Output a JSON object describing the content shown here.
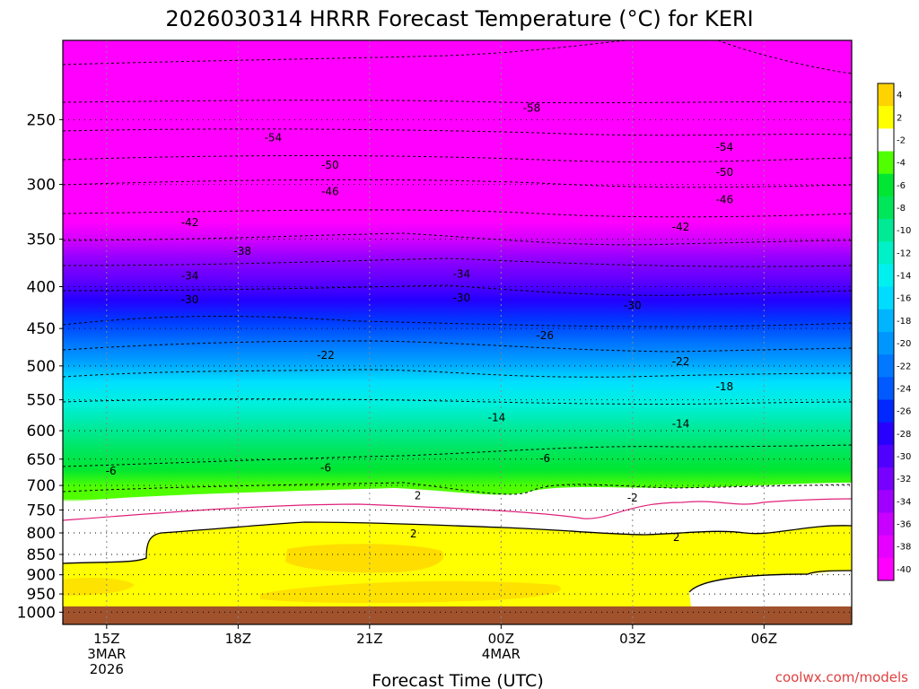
{
  "chart_data": {
    "type": "contour",
    "title": "2026030314 HRRR Forecast Temperature (°C) for KERI",
    "xlabel": "Forecast Time (UTC)",
    "credit": "coolwx.com/models",
    "x_ticks": [
      {
        "label": "15Z",
        "date_line1": "3MAR",
        "date_line2": "2026"
      },
      {
        "label": "18Z",
        "date_line1": "",
        "date_line2": ""
      },
      {
        "label": "21Z",
        "date_line1": "",
        "date_line2": ""
      },
      {
        "label": "00Z",
        "date_line1": "4MAR",
        "date_line2": ""
      },
      {
        "label": "03Z",
        "date_line1": "",
        "date_line2": ""
      },
      {
        "label": "06Z",
        "date_line1": "",
        "date_line2": ""
      }
    ],
    "x_tick_hours": [
      15,
      18,
      21,
      24,
      27,
      30
    ],
    "x_range_hours": [
      14,
      32
    ],
    "y_axis": {
      "type": "pressure",
      "scale": "log",
      "inverted": true,
      "range_hpa": [
        200,
        1035
      ]
    },
    "y_ticks": [
      250,
      300,
      350,
      400,
      450,
      500,
      550,
      600,
      650,
      700,
      750,
      800,
      850,
      900,
      950,
      1000
    ],
    "grid": "dotted",
    "colorbar": {
      "position": "right",
      "ticks": [
        "4",
        "2",
        "-2",
        "-4",
        "-6",
        "-8",
        "-10",
        "-12",
        "-14",
        "-16",
        "-18",
        "-20",
        "-22",
        "-24",
        "-26",
        "-28",
        "-30",
        "-32",
        "-34",
        "-36",
        "-38",
        "-40"
      ],
      "colors": [
        "#ffd300",
        "#ffff00",
        "#ffffff",
        "#50ff00",
        "#00e632",
        "#00e65a",
        "#00ea96",
        "#00f0c8",
        "#00f0f0",
        "#00dcff",
        "#00b4ff",
        "#0096ff",
        "#0078ff",
        "#005aff",
        "#0028ff",
        "#2800ff",
        "#5000ff",
        "#7800ff",
        "#a000ff",
        "#c800ff",
        "#e600ff",
        "#ff00ff"
      ]
    },
    "contour_labels": [
      {
        "value": "-58",
        "hour": 24.7,
        "pressure": 242
      },
      {
        "value": "-54",
        "hour": 18.8,
        "pressure": 263
      },
      {
        "value": "-54",
        "hour": 29.1,
        "pressure": 270
      },
      {
        "value": "-50",
        "hour": 20.1,
        "pressure": 284
      },
      {
        "value": "-50",
        "hour": 29.1,
        "pressure": 290
      },
      {
        "value": "-46",
        "hour": 20.1,
        "pressure": 306
      },
      {
        "value": "-46",
        "hour": 29.1,
        "pressure": 313
      },
      {
        "value": "-42",
        "hour": 16.9,
        "pressure": 334
      },
      {
        "value": "-42",
        "hour": 28.1,
        "pressure": 338
      },
      {
        "value": "-38",
        "hour": 18.1,
        "pressure": 362
      },
      {
        "value": "-34",
        "hour": 16.9,
        "pressure": 388
      },
      {
        "value": "-34",
        "hour": 23.1,
        "pressure": 386
      },
      {
        "value": "-30",
        "hour": 16.9,
        "pressure": 415
      },
      {
        "value": "-30",
        "hour": 23.1,
        "pressure": 413
      },
      {
        "value": "-30",
        "hour": 27.0,
        "pressure": 422
      },
      {
        "value": "-26",
        "hour": 25.0,
        "pressure": 459
      },
      {
        "value": "-22",
        "hour": 20.0,
        "pressure": 485
      },
      {
        "value": "-22",
        "hour": 28.1,
        "pressure": 494
      },
      {
        "value": "-18",
        "hour": 29.1,
        "pressure": 530
      },
      {
        "value": "-14",
        "hour": 23.9,
        "pressure": 578
      },
      {
        "value": "-14",
        "hour": 28.1,
        "pressure": 589
      },
      {
        "value": "-6",
        "hour": 15.1,
        "pressure": 672
      },
      {
        "value": "-6",
        "hour": 20.0,
        "pressure": 666
      },
      {
        "value": "-6",
        "hour": 25.0,
        "pressure": 649
      },
      {
        "value": "2",
        "hour": 22.1,
        "pressure": 720
      },
      {
        "value": "-2",
        "hour": 27.0,
        "pressure": 725
      },
      {
        "value": "2",
        "hour": 22.0,
        "pressure": 802
      },
      {
        "value": "2",
        "hour": 28.0,
        "pressure": 810
      }
    ]
  }
}
